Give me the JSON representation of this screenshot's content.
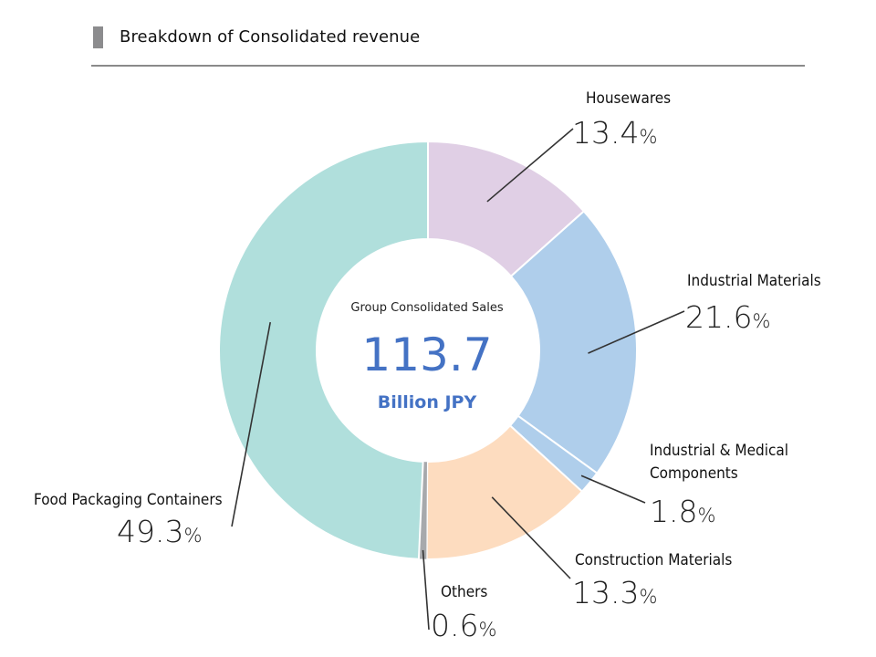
{
  "header": {
    "title": "Breakdown of Consolidated revenue"
  },
  "chart_data": {
    "type": "pie",
    "variant": "donut",
    "title": "Breakdown of Consolidated revenue",
    "center": {
      "label": "Group Consolidated Sales",
      "value": "113.7",
      "unit": "Billion JPY"
    },
    "unit": "%",
    "slices": [
      {
        "name": "Housewares",
        "value": 13.4,
        "value_label": "13.4",
        "color": "#e0cfe5"
      },
      {
        "name": "Industrial Materials",
        "value": 21.6,
        "value_label": "21.6",
        "color": "#afceeb"
      },
      {
        "name": "Industrial & Medical Components",
        "name_lines": [
          "Industrial & Medical",
          "Components"
        ],
        "value": 1.8,
        "value_label": "1.8",
        "color": "#afceeb"
      },
      {
        "name": "Construction Materials",
        "value": 13.3,
        "value_label": "13.3",
        "color": "#fddcbf"
      },
      {
        "name": "Others",
        "value": 0.6,
        "value_label": "0.6",
        "color": "#a7a9ac"
      },
      {
        "name": "Food Packaging Containers",
        "value": 49.3,
        "value_label": "49.3",
        "color": "#b0dfdc"
      }
    ]
  }
}
